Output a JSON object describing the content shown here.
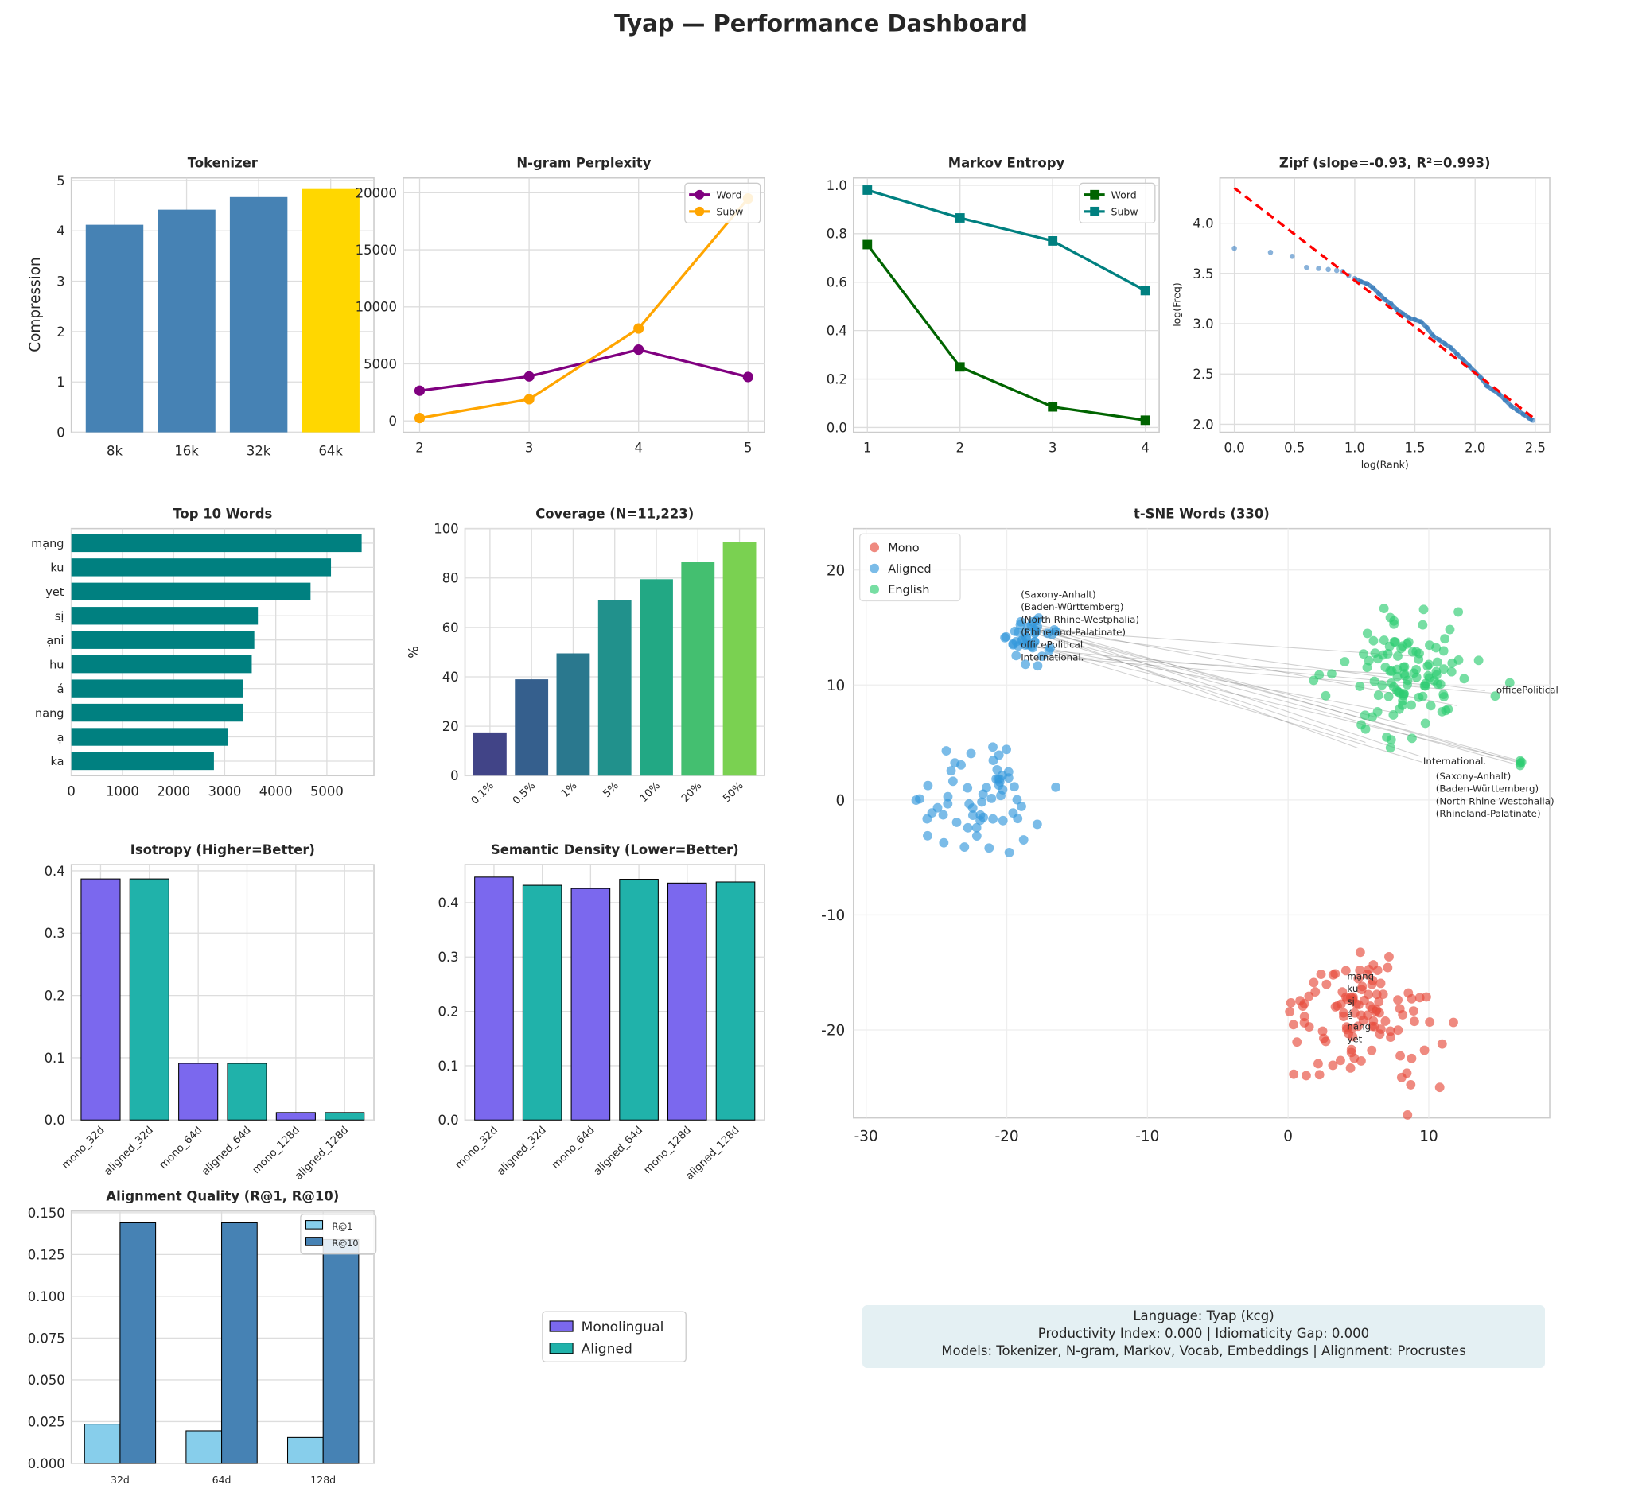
{
  "title": "Tyap — Performance Dashboard",
  "info": {
    "line1": "Language: Tyap (kcg)",
    "line2": "Productivity Index: 0.000  |  Idiomaticity Gap: 0.000",
    "line3": "Models: Tokenizer, N-gram, Markov, Vocab, Embeddings  |  Alignment: Procrustes"
  },
  "shared_legend": {
    "items": [
      {
        "label": "Monolingual",
        "color": "#7b68ee"
      },
      {
        "label": "Aligned",
        "color": "#20b2aa"
      }
    ]
  },
  "chart_data": [
    {
      "id": "tokenizer",
      "type": "bar",
      "title": "Tokenizer",
      "ylabel": "Compression",
      "categories": [
        "8k",
        "16k",
        "32k",
        "64k"
      ],
      "values": [
        4.12,
        4.42,
        4.67,
        4.83
      ],
      "colors": [
        "#4682b4",
        "#4682b4",
        "#4682b4",
        "#ffd700"
      ],
      "ylim": [
        0,
        5.05
      ],
      "yticks": [
        0,
        1,
        2,
        3,
        4,
        5
      ],
      "grid": true
    },
    {
      "id": "ngram",
      "type": "line",
      "title": "N-gram Perplexity",
      "x": [
        2,
        3,
        4,
        5
      ],
      "series": [
        {
          "name": "Word",
          "values": [
            2650,
            3900,
            6250,
            3850
          ],
          "color": "#800080"
        },
        {
          "name": "Subw",
          "values": [
            250,
            1900,
            8100,
            19500
          ],
          "color": "#ffa500"
        }
      ],
      "ylim": [
        -1000,
        21300
      ],
      "yticks": [
        0,
        5000,
        10000,
        15000,
        20000
      ],
      "xticks": [
        2,
        3,
        4,
        5
      ],
      "legend": "top-right",
      "grid": true
    },
    {
      "id": "markov",
      "type": "line",
      "title": "Markov Entropy",
      "x": [
        1,
        2,
        3,
        4
      ],
      "series": [
        {
          "name": "Word",
          "values": [
            0.755,
            0.25,
            0.085,
            0.03
          ],
          "color": "#006400"
        },
        {
          "name": "Subw",
          "values": [
            0.98,
            0.865,
            0.77,
            0.565
          ],
          "color": "#008080"
        }
      ],
      "ylim": [
        -0.02,
        1.03
      ],
      "yticks": [
        "0.0",
        "0.2",
        "0.4",
        "0.6",
        "0.8",
        "1.0"
      ],
      "xticks": [
        1,
        2,
        3,
        4
      ],
      "legend": "top-right",
      "grid": true
    },
    {
      "id": "zipf",
      "type": "scatter",
      "title": "Zipf (slope=-0.93, R²=0.993)",
      "xlabel": "log(Rank)",
      "ylabel": "log(Freq)",
      "points": [
        [
          0,
          3.75
        ],
        [
          0.3,
          3.71
        ],
        [
          0.48,
          3.67
        ],
        [
          0.6,
          3.56
        ],
        [
          0.7,
          3.55
        ],
        [
          0.78,
          3.54
        ],
        [
          0.85,
          3.53
        ],
        [
          0.9,
          3.52
        ],
        [
          0.95,
          3.48
        ],
        [
          1.0,
          3.45
        ],
        [
          1.05,
          3.42
        ],
        [
          1.1,
          3.4
        ],
        [
          1.15,
          3.36
        ],
        [
          1.2,
          3.3
        ],
        [
          1.25,
          3.24
        ],
        [
          1.3,
          3.2
        ],
        [
          1.35,
          3.14
        ],
        [
          1.4,
          3.1
        ],
        [
          1.45,
          3.06
        ],
        [
          1.5,
          3.04
        ],
        [
          1.55,
          3.02
        ],
        [
          1.6,
          2.96
        ],
        [
          1.65,
          2.88
        ],
        [
          1.7,
          2.84
        ],
        [
          1.75,
          2.8
        ],
        [
          1.8,
          2.76
        ],
        [
          1.85,
          2.7
        ],
        [
          1.9,
          2.64
        ],
        [
          1.95,
          2.58
        ],
        [
          2.0,
          2.52
        ],
        [
          2.05,
          2.46
        ],
        [
          2.1,
          2.38
        ],
        [
          2.15,
          2.34
        ],
        [
          2.2,
          2.3
        ],
        [
          2.25,
          2.24
        ],
        [
          2.3,
          2.18
        ],
        [
          2.35,
          2.14
        ],
        [
          2.4,
          2.1
        ],
        [
          2.45,
          2.06
        ],
        [
          2.48,
          2.04
        ]
      ],
      "fit": {
        "x": [
          0,
          2.5
        ],
        "y": [
          4.35,
          2.05
        ],
        "color": "#ff0000",
        "style": "dashed"
      },
      "xlim": [
        -0.12,
        2.62
      ],
      "ylim": [
        1.92,
        4.45
      ],
      "xticks": [
        "0.0",
        "0.5",
        "1.0",
        "1.5",
        "2.0",
        "2.5"
      ],
      "yticks": [
        "2.0",
        "2.5",
        "3.0",
        "3.5",
        "4.0"
      ],
      "grid": true
    },
    {
      "id": "top_words",
      "type": "bar",
      "orientation": "horizontal",
      "title": "Top 10 Words",
      "categories": [
        "mạng",
        "ku",
        "yet",
        "sị",
        "ạni",
        "hu",
        "á̱",
        "nang",
        "ạ",
        "ka"
      ],
      "values": [
        5680,
        5080,
        4680,
        3650,
        3580,
        3530,
        3360,
        3360,
        3070,
        2790
      ],
      "color": "#008080",
      "xlim": [
        0,
        5920
      ],
      "xticks": [
        0,
        1000,
        2000,
        3000,
        4000,
        5000
      ],
      "grid": true
    },
    {
      "id": "coverage",
      "type": "bar",
      "title": "Coverage (N=11,223)",
      "ylabel": "%",
      "categories": [
        "0.1%",
        "0.5%",
        "1%",
        "5%",
        "10%",
        "20%",
        "50%"
      ],
      "values": [
        17.5,
        39,
        49.5,
        71,
        79.5,
        86.5,
        94.5
      ],
      "colors": [
        "#414487",
        "#355f8d",
        "#2a788e",
        "#21918c",
        "#22a884",
        "#44bf70",
        "#7ad151"
      ],
      "ylim": [
        0,
        100
      ],
      "yticks": [
        0,
        20,
        40,
        60,
        80,
        100
      ],
      "grid": true
    },
    {
      "id": "tsne",
      "type": "scatter",
      "title": "t-SNE Words (330)",
      "series": [
        {
          "name": "Mono",
          "color": "#e74c3c"
        },
        {
          "name": "Aligned",
          "color": "#3498db"
        },
        {
          "name": "English",
          "color": "#2ecc71"
        }
      ],
      "labels": {
        "aligned": [
          "(Saxony-Anhalt)",
          "(Baden-Württemberg)",
          "(North Rhine-Westphalia)",
          "(Rhineland-Palatinate)",
          "officePolitical",
          "International."
        ],
        "english": [
          "(Saxony-Anhalt)",
          "(Baden-Württemberg)",
          "(North Rhine-Westphalia)",
          "(Rhineland-Palatinate)",
          "officePolitical",
          "International."
        ],
        "mono": [
          "mạng",
          "ku",
          "sị",
          "á̱",
          "nang",
          "yet"
        ]
      },
      "xlim": [
        -30.9,
        18.6
      ],
      "ylim": [
        -27.65,
        23.6
      ],
      "xticks": [
        -30,
        -20,
        -10,
        0,
        10
      ],
      "yticks": [
        -20,
        -10,
        0,
        10,
        20
      ],
      "legend": "top-left",
      "grid": true
    },
    {
      "id": "isotropy",
      "type": "bar",
      "title": "Isotropy (Higher=Better)",
      "categories": [
        "mono_32d",
        "aligned_32d",
        "mono_64d",
        "aligned_64d",
        "mono_128d",
        "aligned_128d"
      ],
      "values": [
        0.387,
        0.387,
        0.091,
        0.091,
        0.012,
        0.012
      ],
      "colors": [
        "#7b68ee",
        "#20b2aa",
        "#7b68ee",
        "#20b2aa",
        "#7b68ee",
        "#20b2aa"
      ],
      "ylim": [
        0,
        0.41
      ],
      "yticks": [
        "0.0",
        "0.1",
        "0.2",
        "0.3",
        "0.4"
      ],
      "grid": true
    },
    {
      "id": "semantic_density",
      "type": "bar",
      "title": "Semantic Density (Lower=Better)",
      "categories": [
        "mono_32d",
        "aligned_32d",
        "mono_64d",
        "aligned_64d",
        "mono_128d",
        "aligned_128d"
      ],
      "values": [
        0.447,
        0.432,
        0.426,
        0.443,
        0.436,
        0.438
      ],
      "colors": [
        "#7b68ee",
        "#20b2aa",
        "#7b68ee",
        "#20b2aa",
        "#7b68ee",
        "#20b2aa"
      ],
      "ylim": [
        0,
        0.47
      ],
      "yticks": [
        "0.0",
        "0.1",
        "0.2",
        "0.3",
        "0.4"
      ],
      "grid": true
    },
    {
      "id": "alignment",
      "type": "bar",
      "title": "Alignment Quality (R@1, R@10)",
      "categories": [
        "32d",
        "64d",
        "128d"
      ],
      "series": [
        {
          "name": "R@1",
          "values": [
            0.0235,
            0.0195,
            0.0155
          ],
          "color": "#87ceeb"
        },
        {
          "name": "R@10",
          "values": [
            0.144,
            0.144,
            0.134
          ],
          "color": "#4682b4"
        }
      ],
      "ylim": [
        0,
        0.151
      ],
      "yticks": [
        "0.000",
        "0.025",
        "0.050",
        "0.075",
        "0.100",
        "0.125",
        "0.150"
      ],
      "legend": "top-right",
      "grid": true
    }
  ]
}
